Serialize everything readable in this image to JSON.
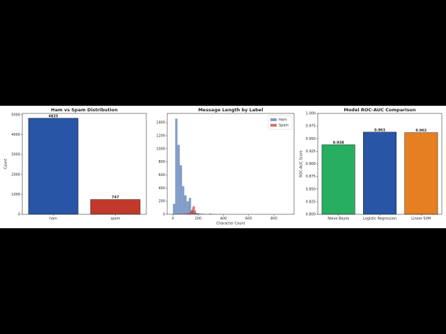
{
  "chart_data": [
    {
      "type": "bar",
      "title": "Ham vs Spam Distribution",
      "y_label": "Count",
      "categories": [
        "ham",
        "spam"
      ],
      "values": [
        4825,
        747
      ],
      "colors": [
        "#2855a5",
        "#c0392b"
      ],
      "ylim": [
        0,
        5066
      ],
      "yticks": [
        0,
        1000,
        2000,
        3000,
        4000,
        5000
      ]
    },
    {
      "type": "histogram",
      "title": "Message Length by Label",
      "x_label": "Character Count",
      "xlim": [
        -45,
        960
      ],
      "xticks": [
        0,
        200,
        400,
        600,
        800
      ],
      "ylim": [
        0,
        1540
      ],
      "yticks": [
        0,
        200,
        400,
        600,
        800,
        1000,
        1200,
        1400
      ],
      "legend": "upper right",
      "series": [
        {
          "name": "Ham",
          "color": "#4c72b0",
          "bins": [
            0,
            18,
            36,
            54,
            72,
            90,
            108,
            126,
            144,
            162,
            180,
            198,
            216,
            234,
            252,
            270,
            288,
            306,
            324,
            342,
            360,
            378,
            396,
            414,
            432,
            450,
            468,
            486,
            504,
            522,
            540,
            558,
            576,
            594,
            612,
            630,
            648,
            666,
            684,
            702,
            720,
            738,
            756,
            774,
            792,
            810,
            828,
            846,
            864,
            882,
            900
          ],
          "values": [
            160,
            1460,
            1060,
            750,
            430,
            290,
            200,
            250,
            60,
            30,
            20,
            15,
            10,
            8,
            5,
            4,
            12,
            3,
            2,
            2,
            2,
            1,
            1,
            1,
            1,
            0,
            0,
            0,
            0,
            0,
            0,
            0,
            0,
            0,
            0,
            0,
            0,
            0,
            0,
            0,
            0,
            0,
            0,
            0,
            0,
            0,
            0,
            0,
            0,
            1
          ]
        },
        {
          "name": "Spam",
          "color": "#c0392b",
          "bins": [
            13,
            20,
            27,
            34,
            41,
            48,
            55,
            62,
            69,
            76,
            83,
            90,
            97,
            104,
            111,
            118,
            125,
            132,
            139,
            146,
            153,
            160,
            167,
            174,
            181,
            188,
            195,
            202,
            209,
            216,
            223
          ],
          "values": [
            2,
            2,
            3,
            3,
            4,
            4,
            5,
            5,
            6,
            6,
            7,
            8,
            10,
            12,
            15,
            18,
            22,
            30,
            45,
            70,
            110,
            130,
            120,
            60,
            20,
            8,
            4,
            2,
            1,
            1
          ]
        }
      ]
    },
    {
      "type": "bar",
      "title": "Model ROC-AUC Comparison",
      "y_label": "ROC-AUC Score",
      "categories": [
        "Naive Bayes",
        "Logistic Regression",
        "Linear SVM"
      ],
      "values": [
        0.938,
        0.963,
        0.962
      ],
      "colors": [
        "#27ae60",
        "#2855a5",
        "#e67e22"
      ],
      "ylim": [
        0.8,
        1.0
      ],
      "yticks": [
        {
          "value": 0.8,
          "label": "0.800"
        },
        {
          "value": 0.825,
          "label": "0.825"
        },
        {
          "value": 0.85,
          "label": "0.850"
        },
        {
          "value": 0.875,
          "label": "0.875"
        },
        {
          "value": 0.9,
          "label": "0.900"
        },
        {
          "value": 0.925,
          "label": "0.925"
        },
        {
          "value": 0.95,
          "label": "0.950"
        },
        {
          "value": 0.975,
          "label": "0.975"
        },
        {
          "value": 1.0,
          "label": "1.000"
        }
      ]
    }
  ]
}
